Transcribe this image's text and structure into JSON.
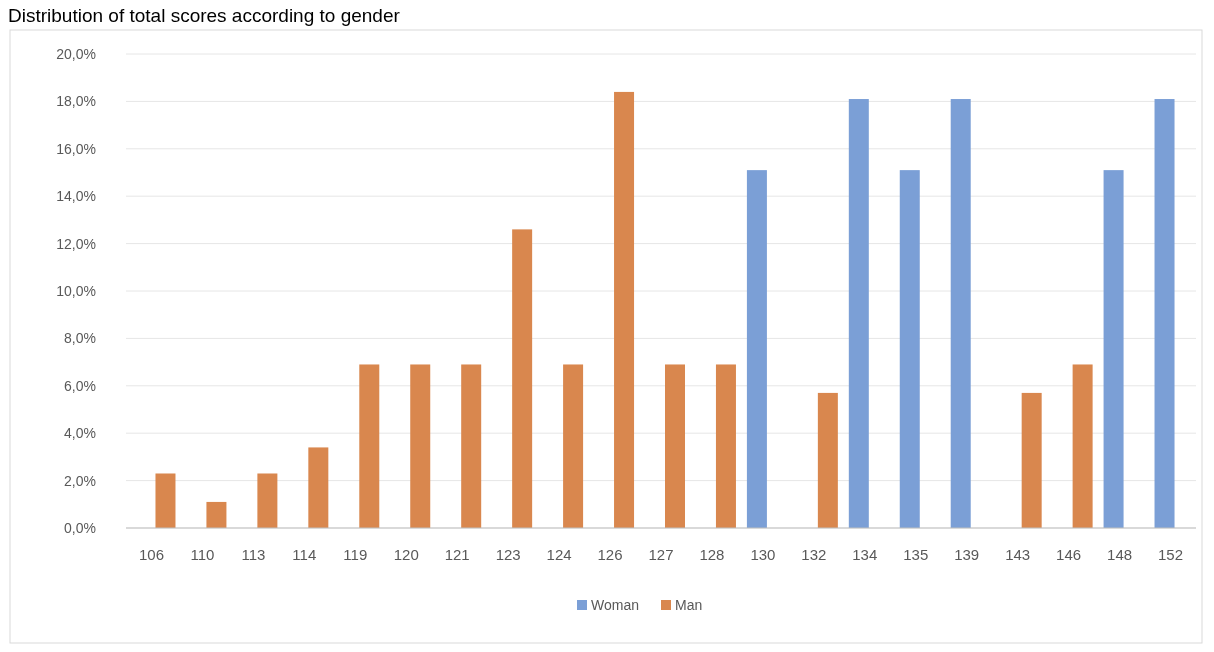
{
  "chart_data": {
    "type": "bar",
    "title": "Distribution of total scores according to gender",
    "categories": [
      "106",
      "110",
      "113",
      "114",
      "119",
      "120",
      "121",
      "123",
      "124",
      "126",
      "127",
      "128",
      "130",
      "132",
      "134",
      "135",
      "139",
      "143",
      "146",
      "148",
      "152"
    ],
    "series": [
      {
        "name": "Woman",
        "color": "#7b9fd6",
        "values": [
          null,
          null,
          null,
          null,
          null,
          null,
          null,
          null,
          null,
          null,
          null,
          null,
          15.1,
          null,
          18.1,
          15.1,
          18.1,
          null,
          null,
          15.1,
          18.1
        ]
      },
      {
        "name": "Man",
        "color": "#d9874e",
        "values": [
          2.3,
          1.1,
          2.3,
          3.4,
          6.9,
          6.9,
          6.9,
          12.6,
          6.9,
          18.4,
          6.9,
          6.9,
          null,
          5.7,
          null,
          null,
          null,
          5.7,
          6.9,
          null,
          null
        ]
      }
    ],
    "ylim": [
      0,
      20
    ],
    "yticks": [
      {
        "value": 0,
        "label": "0,0%"
      },
      {
        "value": 2,
        "label": "2,0%"
      },
      {
        "value": 4,
        "label": "4,0%"
      },
      {
        "value": 6,
        "label": "6,0%"
      },
      {
        "value": 8,
        "label": "8,0%"
      },
      {
        "value": 10,
        "label": "10,0%"
      },
      {
        "value": 12,
        "label": "12,0%"
      },
      {
        "value": 14,
        "label": "14,0%"
      },
      {
        "value": 16,
        "label": "16,0%"
      },
      {
        "value": 18,
        "label": "18,0%"
      },
      {
        "value": 20,
        "label": "20,0%"
      }
    ],
    "grid": "y",
    "legend": "bottom"
  }
}
